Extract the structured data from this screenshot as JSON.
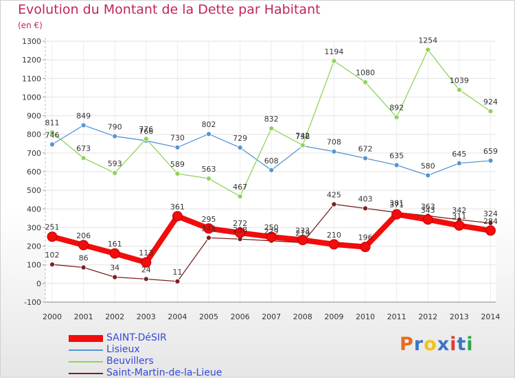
{
  "header": {
    "title": "Evolution du Montant de la Dette par Habitant",
    "subtitle": "(en €)"
  },
  "logo": {
    "text": "Proxiti",
    "colors": [
      "#e86b1f",
      "#3d74c9",
      "#f2c21a",
      "#3d74c9",
      "#e23a2a",
      "#3d74c9",
      "#2aa84a"
    ]
  },
  "chart_data": {
    "type": "line",
    "title": "Evolution du Montant de la Dette par Habitant",
    "subtitle": "(en €)",
    "x": [
      "2000",
      "2001",
      "2002",
      "2003",
      "2004",
      "2005",
      "2006",
      "2007",
      "2008",
      "2009",
      "2010",
      "2011",
      "2012",
      "2013",
      "2014"
    ],
    "ylim": [
      -100,
      1300
    ],
    "yticks": [
      -100,
      0,
      100,
      200,
      300,
      400,
      500,
      600,
      700,
      800,
      900,
      1000,
      1100,
      1200,
      1300
    ],
    "grid": true,
    "legend_position": "bottom-left",
    "series": [
      {
        "name": "SAINT-DéSIR",
        "color": "#f20c0c",
        "values": [
          251,
          206,
          161,
          113,
          361,
          295,
          272,
          250,
          233,
          210,
          196,
          371,
          343,
          311,
          284
        ],
        "labels": [
          "251",
          "206",
          "161",
          "113",
          "361",
          "295",
          "272",
          "250",
          "233",
          "210",
          "196",
          "371",
          "343",
          "311",
          "284"
        ]
      },
      {
        "name": "Lisieux",
        "color": "#5595d3",
        "values": [
          746,
          849,
          790,
          766,
          730,
          802,
          729,
          608,
          738,
          708,
          672,
          635,
          580,
          645,
          659
        ],
        "labels": [
          "746",
          "849",
          "790",
          "766",
          "730",
          "802",
          "729",
          "608",
          "738",
          "708",
          "672",
          "635",
          "580",
          "645",
          "659"
        ]
      },
      {
        "name": "Beuvillers",
        "color": "#8fd25a",
        "values": [
          811,
          673,
          593,
          776,
          589,
          563,
          467,
          832,
          742,
          1194,
          1080,
          892,
          1254,
          1039,
          924
        ],
        "labels": [
          "811",
          "673",
          "593",
          "776",
          "589",
          "563",
          "467",
          "832",
          "742",
          "1194",
          "1080",
          "892",
          "1254",
          "1039",
          "924"
        ]
      },
      {
        "name": "Saint-Martin-de-la-Lieue",
        "color": "#7a2020",
        "values": [
          102,
          86,
          34,
          24,
          11,
          245,
          238,
          229,
          219,
          425,
          403,
          381,
          363,
          342,
          324
        ],
        "labels": [
          "102",
          "86",
          "34",
          "24",
          "11",
          "245",
          "238",
          "229",
          "219",
          "425",
          "403",
          "381",
          "363",
          "342",
          "324"
        ]
      }
    ]
  }
}
